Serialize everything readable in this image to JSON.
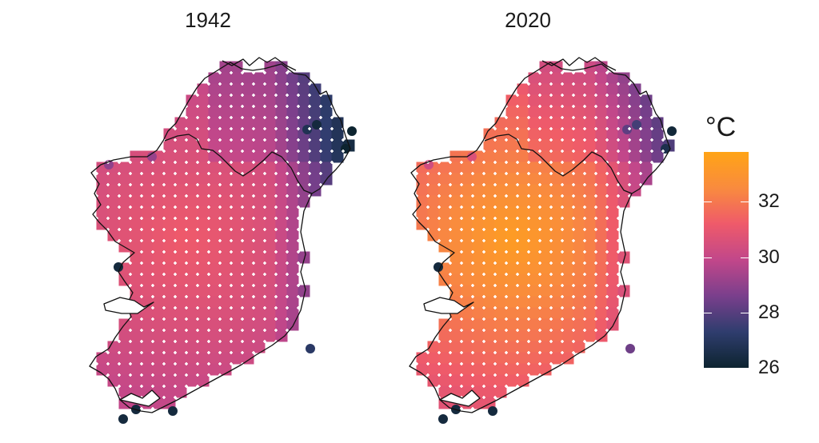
{
  "panels": [
    {
      "title": "1942",
      "scenario": "cool"
    },
    {
      "title": "2020",
      "scenario": "warm"
    }
  ],
  "legend": {
    "title": "°C",
    "min": 26,
    "max": 33.8,
    "ticks": [
      {
        "value": 32,
        "label": "32"
      },
      {
        "value": 30,
        "label": "30"
      },
      {
        "value": 28,
        "label": "28"
      },
      {
        "value": 26,
        "label": "26"
      }
    ],
    "colors": [
      "#0d2430",
      "#2f3d6e",
      "#7a3f8c",
      "#c2478a",
      "#ef5a6a",
      "#f98b3e",
      "#ffa416"
    ]
  }
}
